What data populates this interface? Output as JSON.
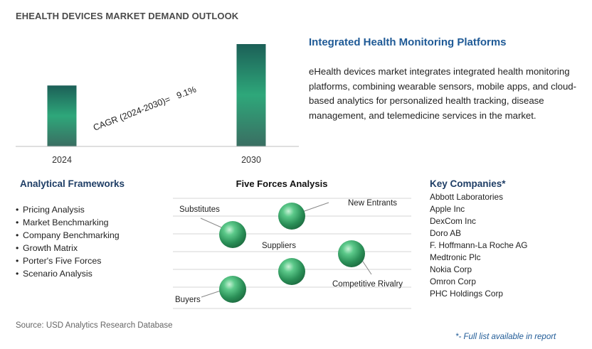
{
  "header": {
    "title": "EHEALTH DEVICES MARKET DEMAND OUTLOOK"
  },
  "chart_data": {
    "type": "bar",
    "categories": [
      "2024",
      "2030"
    ],
    "values": [
      1.0,
      1.68
    ],
    "annotation": "CAGR (2024-2030)=   9.1%",
    "cagr_percent": 9.1,
    "colors": {
      "bar_top": "#1c5f57",
      "bar_mid": "#2ea77a",
      "bar_bottom": "#3a6e62"
    }
  },
  "highlight": {
    "title": "Integrated Health Monitoring Platforms",
    "description": "eHealth devices market integrates integrated health monitoring platforms, combining wearable sensors, mobile apps, and cloud-based analytics for personalized health tracking, disease management, and telemedicine services in the market."
  },
  "frameworks": {
    "title": "Analytical Frameworks",
    "items": [
      "Pricing Analysis",
      "Market Benchmarking",
      "Company Benchmarking",
      "Growth Matrix",
      "Porter's Five Forces",
      "Scenario Analysis"
    ]
  },
  "five_forces": {
    "title": "Five Forces Analysis",
    "labels": {
      "substitutes": "Substitutes",
      "new_entrants": "New Entrants",
      "suppliers": "Suppliers",
      "competitive_rivalry": "Competitive Rivalry",
      "buyers": "Buyers"
    },
    "sphere_color": "#2e9e62"
  },
  "companies": {
    "title": "Key Companies*",
    "items": [
      "Abbott Laboratories",
      "Apple Inc",
      "DexCom Inc",
      "Doro AB",
      "F. Hoffmann-La Roche AG",
      "Medtronic Plc",
      "Nokia Corp",
      "Omron Corp",
      "PHC Holdings Corp"
    ]
  },
  "footer": {
    "source": "Source: USD Analytics Research Database",
    "note": "*- Full list available in report"
  }
}
